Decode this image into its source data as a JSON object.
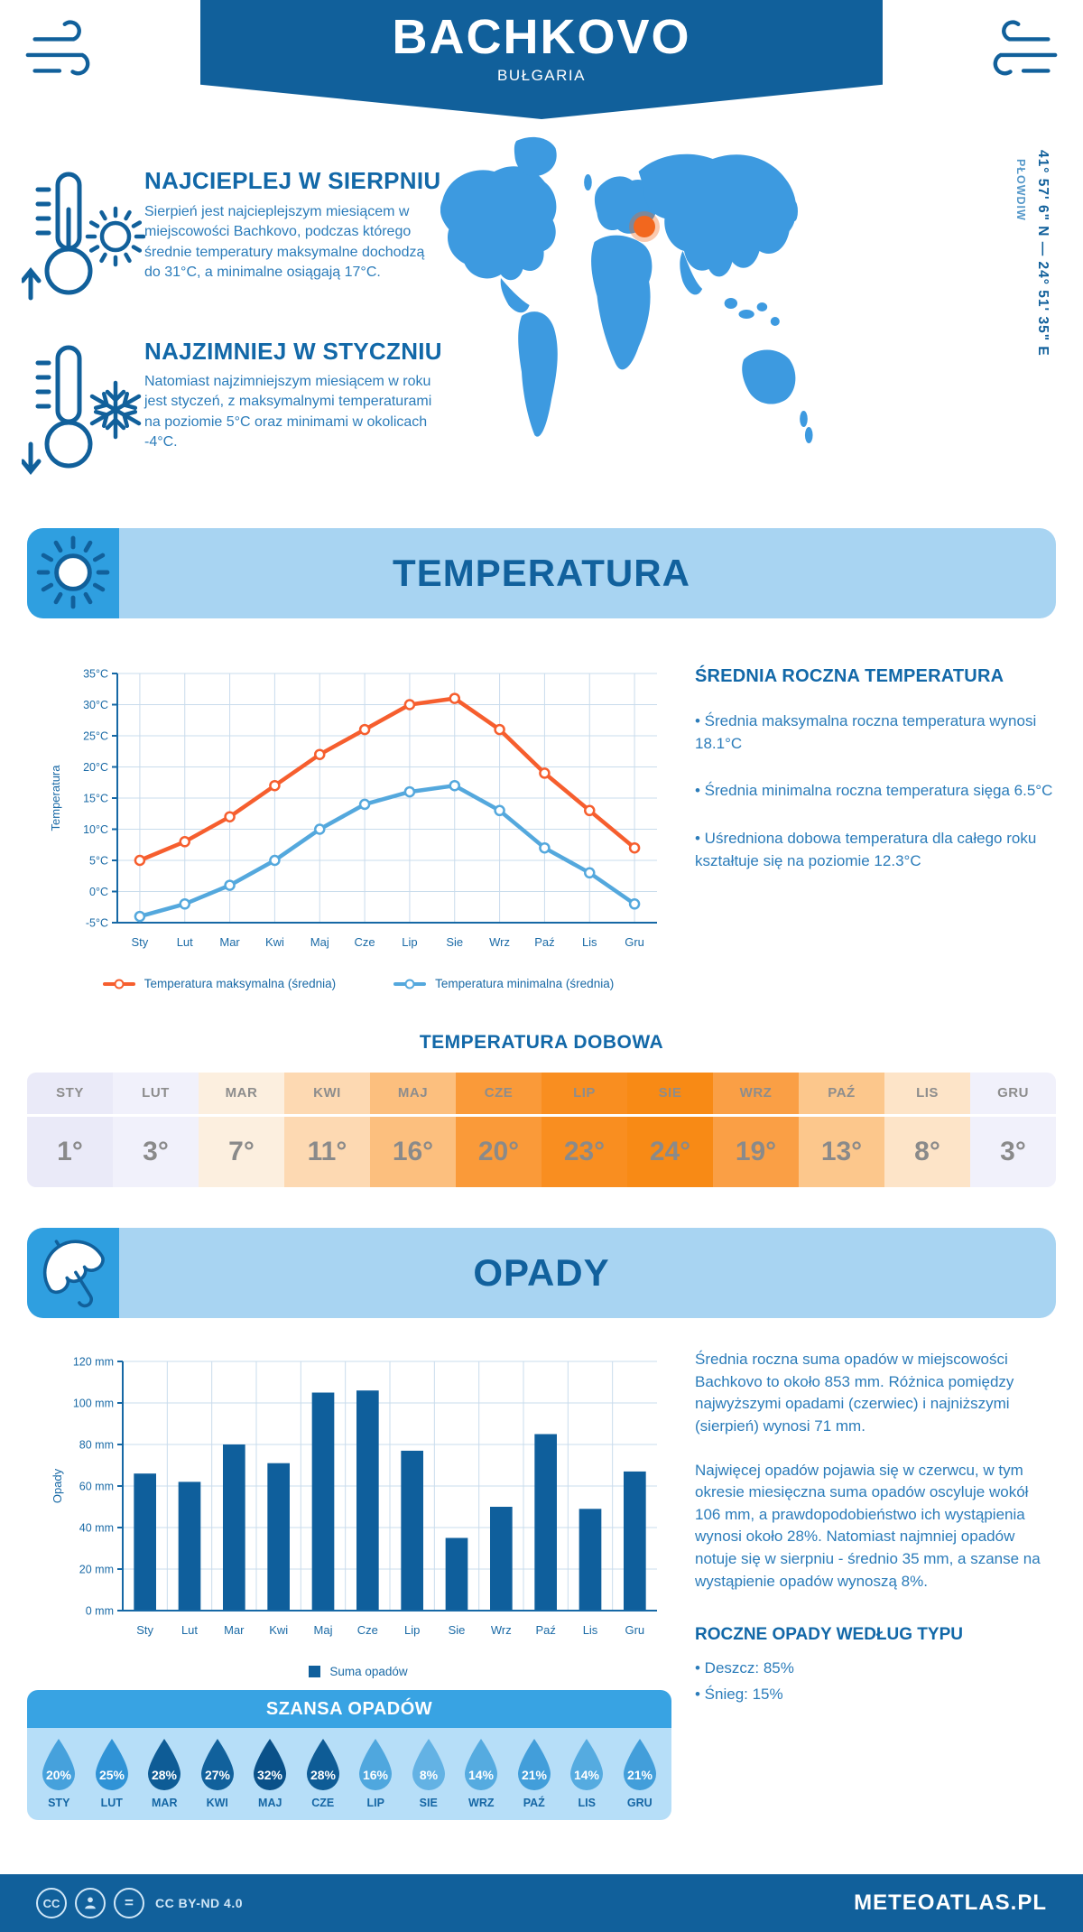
{
  "header": {
    "title": "BACHKOVO",
    "subtitle": "BUŁGARIA"
  },
  "location": {
    "coordinates": "41° 57' 6\" N — 24° 51' 35\" E",
    "city": "PŁOWDIW"
  },
  "intro": {
    "warm": {
      "title": "NAJCIEPLEJ W SIERPNIU",
      "text": "Sierpień jest najcieplejszym miesiącem w miejscowości Bachkovo, podczas którego średnie temperatury maksymalne dochodzą do 31°C, a minimalne osiągają 17°C."
    },
    "cold": {
      "title": "NAJZIMNIEJ W STYCZNIU",
      "text": "Natomiast najzimniejszym miesiącem w roku jest styczeń, z maksymalnymi temperaturami na poziomie 5°C oraz minimami w okolicach -4°C."
    }
  },
  "temperature_section": {
    "banner_title": "TEMPERATURA",
    "annual": {
      "title": "ŚREDNIA ROCZNA TEMPERATURA",
      "bullets": [
        "• Średnia maksymalna roczna temperatura wynosi 18.1°C",
        "• Średnia minimalna roczna temperatura sięga 6.5°C",
        "• Uśredniona dobowa temperatura dla całego roku kształtuje się na poziomie 12.3°C"
      ]
    },
    "daily_title": "TEMPERATURA DOBOWA"
  },
  "precipitation_section": {
    "banner_title": "OPADY",
    "paragraphs": [
      "Średnia roczna suma opadów w miejscowości Bachkovo to około 853 mm. Różnica pomiędzy najwyższymi opadami (czerwiec) i najniższymi (sierpień) wynosi 71 mm.",
      "Najwięcej opadów pojawia się w czerwcu, w tym okresie miesięczna suma opadów oscyluje wokół 106 mm, a prawdopodobieństwo ich wystąpienia wynosi około 28%. Natomiast najmniej opadów notuje się w sierpniu - średnio 35 mm, a szanse na wystąpienie opadów wynoszą 8%."
    ],
    "types": {
      "title": "ROCZNE OPADY WEDŁUG TYPU",
      "bullets": [
        "• Deszcz: 85%",
        "• Śnieg: 15%"
      ]
    },
    "chance_title": "SZANSA OPADÓW"
  },
  "footer": {
    "license": "CC BY-ND 4.0",
    "site": "METEOATLAS.PL"
  },
  "colors": {
    "primary": "#11609b",
    "light_band": "#a8d4f2",
    "badge": "#2f9fe0",
    "max_line": "#f65e2e",
    "min_line": "#54a8dd",
    "bar": "#0f5f9c",
    "marker": "#f2671e"
  },
  "chart_data": [
    {
      "type": "line",
      "title": "Średnie miesięczne temperatury maksymalne i minimalne",
      "x": [
        "Sty",
        "Lut",
        "Mar",
        "Kwi",
        "Maj",
        "Cze",
        "Lip",
        "Sie",
        "Wrz",
        "Paź",
        "Lis",
        "Gru"
      ],
      "series": [
        {
          "name": "Temperatura maksymalna (średnia)",
          "color": "#f65e2e",
          "values": [
            5,
            8,
            12,
            17,
            22,
            26,
            30,
            31,
            26,
            19,
            13,
            7
          ]
        },
        {
          "name": "Temperatura minimalna (średnia)",
          "color": "#54a8dd",
          "values": [
            -4,
            -2,
            1,
            5,
            10,
            14,
            16,
            17,
            13,
            7,
            3,
            -2
          ]
        }
      ],
      "ylabel": "Temperatura",
      "ylim": [
        -5,
        35
      ],
      "ystep": 5,
      "yunit": "°C",
      "grid": true,
      "legend_position": "bottom"
    },
    {
      "type": "bar",
      "title": "Miesięczna suma opadów",
      "categories": [
        "Sty",
        "Lut",
        "Mar",
        "Kwi",
        "Maj",
        "Cze",
        "Lip",
        "Sie",
        "Wrz",
        "Paź",
        "Lis",
        "Gru"
      ],
      "values": [
        66,
        62,
        80,
        71,
        105,
        106,
        77,
        35,
        50,
        85,
        49,
        67
      ],
      "series_name": "Suma opadów",
      "color": "#0f5f9c",
      "ylabel": "Opady",
      "ylim": [
        0,
        120
      ],
      "ystep": 20,
      "yunit": " mm",
      "grid": true
    },
    {
      "type": "table",
      "title": "TEMPERATURA DOBOWA",
      "categories": [
        "STY",
        "LUT",
        "MAR",
        "KWI",
        "MAJ",
        "CZE",
        "LIP",
        "SIE",
        "WRZ",
        "PAŹ",
        "LIS",
        "GRU"
      ],
      "values": [
        "1°",
        "3°",
        "7°",
        "11°",
        "16°",
        "20°",
        "23°",
        "24°",
        "19°",
        "13°",
        "8°",
        "3°"
      ],
      "cell_colors": [
        "#eaeaf8",
        "#f1f1fb",
        "#fcefdf",
        "#fdd9b2",
        "#fcbf7e",
        "#fa9a39",
        "#f98e20",
        "#f88a15",
        "#fa9f45",
        "#fcc78c",
        "#fde4c8",
        "#f1f1fb"
      ]
    },
    {
      "type": "pictogram",
      "title": "SZANSA OPADÓW",
      "categories": [
        "STY",
        "LUT",
        "MAR",
        "KWI",
        "MAJ",
        "CZE",
        "LIP",
        "SIE",
        "WRZ",
        "PAŹ",
        "LIS",
        "GRU"
      ],
      "values": [
        20,
        25,
        28,
        27,
        32,
        28,
        16,
        8,
        14,
        21,
        14,
        21
      ],
      "unit": "%",
      "drop_colors": [
        "#46a1dc",
        "#3093d6",
        "#0e5c96",
        "#11619c",
        "#0a5189",
        "#0e5c96",
        "#4fa7de",
        "#63b2e4",
        "#55abe0",
        "#429eda",
        "#55abe0",
        "#429eda"
      ]
    }
  ]
}
